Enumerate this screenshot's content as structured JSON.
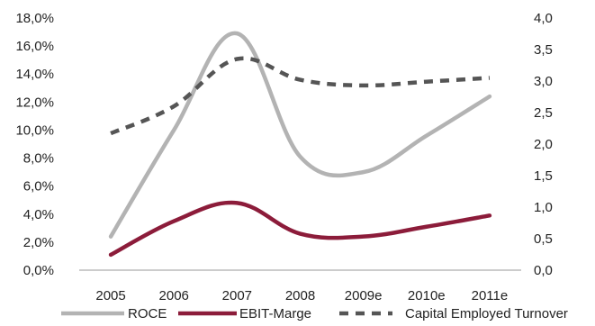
{
  "chart_data": {
    "type": "line",
    "categories": [
      "2005",
      "2006",
      "2007",
      "2008",
      "2009e",
      "2010e",
      "2011e"
    ],
    "y_left": {
      "ticks": [
        "0,0%",
        "2,0%",
        "4,0%",
        "6,0%",
        "8,0%",
        "10,0%",
        "12,0%",
        "14,0%",
        "16,0%",
        "18,0%"
      ],
      "range": [
        0,
        18
      ]
    },
    "y_right": {
      "ticks": [
        "0,0",
        "0,5",
        "1,0",
        "1,5",
        "2,0",
        "2,5",
        "3,0",
        "3,5",
        "4,0"
      ],
      "range": [
        0,
        4
      ]
    },
    "series": [
      {
        "name": "ROCE",
        "axis": "left",
        "color": "#b3b3b3",
        "style": "solid",
        "values": [
          2.4,
          10.0,
          16.6,
          8.1,
          7.0,
          9.6,
          12.4
        ],
        "peak": {
          "x": 2.0,
          "y": 16.9
        }
      },
      {
        "name": "EBIT-Marge",
        "axis": "left",
        "color": "#8c1c3a",
        "style": "solid",
        "values": [
          1.1,
          3.5,
          4.8,
          2.6,
          2.4,
          3.1,
          3.9
        ]
      },
      {
        "name": "Capital Employed Turnover",
        "axis": "right",
        "color": "#555555",
        "style": "dashed",
        "values": [
          2.17,
          2.6,
          3.35,
          3.02,
          2.93,
          2.99,
          3.05
        ]
      }
    ],
    "grid": false,
    "legend_position": "bottom"
  }
}
